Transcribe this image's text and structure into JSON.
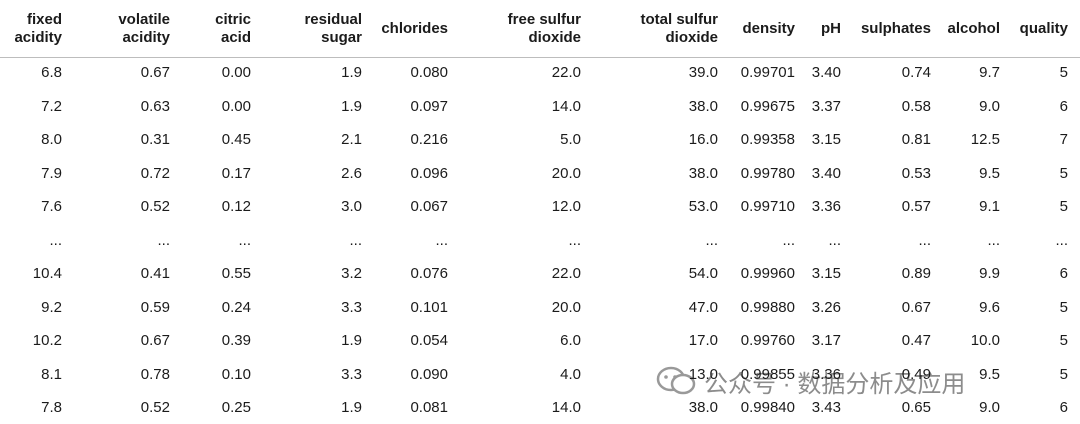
{
  "table": {
    "header": [
      [
        "fixed",
        "acidity"
      ],
      [
        "volatile",
        "acidity"
      ],
      [
        "citric",
        "acid"
      ],
      [
        "residual",
        "sugar"
      ],
      [
        "chlorides"
      ],
      [
        "free sulfur",
        "dioxide"
      ],
      [
        "total sulfur",
        "dioxide"
      ],
      [
        "density"
      ],
      [
        "pH"
      ],
      [
        "sulphates"
      ],
      [
        "alcohol"
      ],
      [
        "quality"
      ]
    ],
    "rows": [
      [
        "6.8",
        "0.67",
        "0.00",
        "1.9",
        "0.080",
        "22.0",
        "39.0",
        "0.99701",
        "3.40",
        "0.74",
        "9.7",
        "5"
      ],
      [
        "7.2",
        "0.63",
        "0.00",
        "1.9",
        "0.097",
        "14.0",
        "38.0",
        "0.99675",
        "3.37",
        "0.58",
        "9.0",
        "6"
      ],
      [
        "8.0",
        "0.31",
        "0.45",
        "2.1",
        "0.216",
        "5.0",
        "16.0",
        "0.99358",
        "3.15",
        "0.81",
        "12.5",
        "7"
      ],
      [
        "7.9",
        "0.72",
        "0.17",
        "2.6",
        "0.096",
        "20.0",
        "38.0",
        "0.99780",
        "3.40",
        "0.53",
        "9.5",
        "5"
      ],
      [
        "7.6",
        "0.52",
        "0.12",
        "3.0",
        "0.067",
        "12.0",
        "53.0",
        "0.99710",
        "3.36",
        "0.57",
        "9.1",
        "5"
      ],
      [
        "...",
        "...",
        "...",
        "...",
        "...",
        "...",
        "...",
        "...",
        "...",
        "...",
        "...",
        "..."
      ],
      [
        "10.4",
        "0.41",
        "0.55",
        "3.2",
        "0.076",
        "22.0",
        "54.0",
        "0.99960",
        "3.15",
        "0.89",
        "9.9",
        "6"
      ],
      [
        "9.2",
        "0.59",
        "0.24",
        "3.3",
        "0.101",
        "20.0",
        "47.0",
        "0.99880",
        "3.26",
        "0.67",
        "9.6",
        "5"
      ],
      [
        "10.2",
        "0.67",
        "0.39",
        "1.9",
        "0.054",
        "6.0",
        "17.0",
        "0.99760",
        "3.17",
        "0.47",
        "10.0",
        "5"
      ],
      [
        "8.1",
        "0.78",
        "0.10",
        "3.3",
        "0.090",
        "4.0",
        "13.0",
        "0.99855",
        "3.36",
        "0.49",
        "9.5",
        "5"
      ],
      [
        "7.8",
        "0.52",
        "0.25",
        "1.9",
        "0.081",
        "14.0",
        "38.0",
        "0.99840",
        "3.43",
        "0.65",
        "9.0",
        "6"
      ]
    ]
  },
  "watermark": "公众号 · 数据分析及应用"
}
